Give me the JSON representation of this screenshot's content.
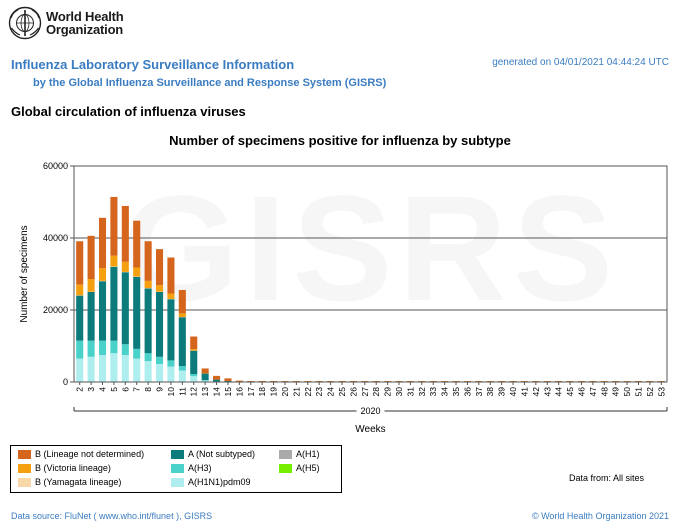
{
  "org": {
    "line1": "World Health",
    "line2": "Organization"
  },
  "header": {
    "title": "Influenza Laboratory Surveillance Information",
    "subtitle": "by the Global Influenza Surveillance and Response System (GISRS)",
    "generated": "generated on 04/01/2021 04:44:24 UTC"
  },
  "section_title": "Global circulation of influenza viruses",
  "watermark": "GISRS",
  "chart_data": {
    "type": "bar",
    "stacked": true,
    "title": "Number of specimens positive for influenza by subtype",
    "ylabel": "Number of specimens",
    "xlabel": "Weeks",
    "year_label": "2020",
    "ylim": [
      0,
      60000
    ],
    "yticks": [
      0,
      20000,
      40000,
      60000
    ],
    "categories": [
      "2",
      "3",
      "4",
      "5",
      "6",
      "7",
      "8",
      "9",
      "10",
      "11",
      "12",
      "13",
      "14",
      "15",
      "16",
      "17",
      "18",
      "19",
      "20",
      "21",
      "22",
      "23",
      "24",
      "25",
      "26",
      "27",
      "28",
      "29",
      "30",
      "31",
      "32",
      "33",
      "34",
      "35",
      "36",
      "37",
      "38",
      "39",
      "40",
      "41",
      "42",
      "43",
      "44",
      "45",
      "46",
      "47",
      "48",
      "49",
      "50",
      "51",
      "52",
      "53"
    ],
    "series": [
      {
        "name": "A(H1N1)pdm09",
        "color": "#aeeeee",
        "values": [
          6500,
          7000,
          7500,
          8000,
          7500,
          6500,
          5800,
          5000,
          4300,
          3200,
          1600,
          400,
          120,
          60,
          40,
          30,
          20,
          20,
          20,
          15,
          15,
          15,
          15,
          15,
          15,
          15,
          15,
          15,
          15,
          15,
          15,
          15,
          15,
          15,
          15,
          15,
          15,
          15,
          15,
          15,
          15,
          15,
          15,
          15,
          15,
          15,
          15,
          15,
          15,
          15,
          15,
          15
        ]
      },
      {
        "name": "A(H3)",
        "color": "#4ad1c9",
        "values": [
          5000,
          4500,
          4000,
          3500,
          3000,
          2700,
          2200,
          2000,
          1700,
          1200,
          600,
          150,
          50,
          30,
          20,
          10,
          10,
          10,
          10,
          10,
          10,
          10,
          10,
          10,
          10,
          10,
          10,
          10,
          10,
          10,
          10,
          10,
          10,
          10,
          10,
          10,
          10,
          10,
          10,
          10,
          10,
          10,
          10,
          10,
          10,
          10,
          10,
          10,
          10,
          10,
          10,
          10
        ]
      },
      {
        "name": "A (Not subtyped)",
        "color": "#0d7b7b",
        "values": [
          12500,
          13500,
          16500,
          20500,
          20000,
          20000,
          18000,
          18000,
          17000,
          13600,
          6500,
          1800,
          500,
          200,
          100,
          60,
          50,
          40,
          40,
          40,
          40,
          40,
          40,
          40,
          40,
          40,
          40,
          40,
          40,
          40,
          40,
          40,
          40,
          40,
          40,
          40,
          40,
          40,
          40,
          40,
          40,
          40,
          40,
          40,
          40,
          40,
          40,
          40,
          40,
          40,
          40,
          40
        ]
      },
      {
        "name": "A(H1)",
        "color": "#aaaaaa",
        "values": [
          0,
          0,
          0,
          0,
          0,
          0,
          0,
          0,
          0,
          0,
          0,
          0,
          0,
          0,
          0,
          0,
          0,
          0,
          0,
          0,
          0,
          0,
          0,
          0,
          0,
          0,
          0,
          0,
          0,
          0,
          0,
          0,
          0,
          0,
          0,
          0,
          0,
          0,
          0,
          0,
          0,
          0,
          0,
          0,
          0,
          0,
          0,
          0,
          0,
          0,
          0,
          0
        ]
      },
      {
        "name": "A(H5)",
        "color": "#77ee00",
        "values": [
          0,
          0,
          0,
          0,
          0,
          0,
          0,
          0,
          0,
          0,
          0,
          0,
          0,
          0,
          0,
          0,
          0,
          0,
          0,
          0,
          0,
          0,
          0,
          0,
          0,
          0,
          0,
          0,
          0,
          0,
          0,
          0,
          0,
          0,
          0,
          0,
          0,
          0,
          0,
          0,
          0,
          0,
          0,
          0,
          0,
          0,
          0,
          0,
          0,
          0,
          0,
          0
        ]
      },
      {
        "name": "B (Yamagata lineage)",
        "color": "#f8d8a8",
        "values": [
          100,
          100,
          100,
          100,
          100,
          100,
          100,
          100,
          80,
          60,
          30,
          10,
          0,
          0,
          0,
          0,
          0,
          0,
          0,
          0,
          0,
          0,
          0,
          0,
          0,
          0,
          0,
          0,
          0,
          0,
          0,
          0,
          0,
          0,
          0,
          0,
          0,
          0,
          0,
          0,
          0,
          0,
          0,
          0,
          0,
          0,
          0,
          0,
          0,
          0,
          0,
          0
        ]
      },
      {
        "name": "B (Victoria lineage)",
        "color": "#f5a00f",
        "values": [
          3000,
          3500,
          3500,
          3000,
          2800,
          2500,
          2000,
          1800,
          1500,
          1000,
          400,
          100,
          30,
          20,
          10,
          10,
          5,
          5,
          5,
          5,
          5,
          5,
          5,
          5,
          5,
          5,
          5,
          5,
          5,
          5,
          5,
          5,
          5,
          5,
          5,
          5,
          5,
          5,
          5,
          5,
          5,
          5,
          5,
          5,
          5,
          5,
          5,
          5,
          5,
          5,
          5,
          5
        ]
      },
      {
        "name": "B (Lineage not determined)",
        "color": "#d5641c",
        "values": [
          12000,
          12000,
          14000,
          16300,
          15500,
          13000,
          11000,
          10000,
          10000,
          6500,
          3500,
          1300,
          1000,
          700,
          200,
          100,
          80,
          60,
          60,
          60,
          60,
          60,
          60,
          60,
          60,
          60,
          60,
          60,
          60,
          60,
          60,
          60,
          60,
          60,
          60,
          60,
          60,
          60,
          60,
          60,
          60,
          60,
          60,
          60,
          60,
          60,
          60,
          60,
          60,
          60,
          60,
          60
        ]
      }
    ]
  },
  "legend": {
    "items": [
      {
        "label": "B (Lineage not determined)",
        "color": "#d5641c"
      },
      {
        "label": "B (Victoria lineage)",
        "color": "#f5a00f"
      },
      {
        "label": "B (Yamagata lineage)",
        "color": "#f8d8a8"
      },
      {
        "label": "A (Not subtyped)",
        "color": "#0d7b7b"
      },
      {
        "label": "A(H3)",
        "color": "#4ad1c9"
      },
      {
        "label": "A(H1N1)pdm09",
        "color": "#aeeeee"
      },
      {
        "label": "A(H1)",
        "color": "#aaaaaa"
      },
      {
        "label": "A(H5)",
        "color": "#77ee00"
      }
    ]
  },
  "data_from": "Data from: All sites",
  "footer": {
    "source": "Data source: FluNet ( www.who.int/flunet ), GISRS",
    "copyright": "© World Health Organization 2021"
  }
}
